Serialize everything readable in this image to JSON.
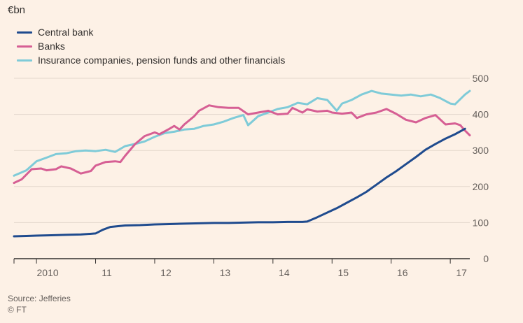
{
  "chart_data": {
    "type": "line",
    "unit_label": "€bn",
    "ylim": [
      0,
      500
    ],
    "yticks": [
      0,
      100,
      200,
      300,
      400,
      500
    ],
    "xlim": [
      2009.62,
      2017.33
    ],
    "xticks": [
      {
        "label": "2010",
        "pos": 2010.0
      },
      {
        "label": "11",
        "pos": 2011.0
      },
      {
        "label": "12",
        "pos": 2012.0
      },
      {
        "label": "13",
        "pos": 2013.0
      },
      {
        "label": "14",
        "pos": 2014.0
      },
      {
        "label": "15",
        "pos": 2015.0
      },
      {
        "label": "16",
        "pos": 2016.0
      },
      {
        "label": "17",
        "pos": 2017.0
      }
    ],
    "grid": true,
    "legend_position": "top-left",
    "series": [
      {
        "name": "Central bank",
        "color": "#1f4b8e",
        "points": [
          [
            2009.62,
            62
          ],
          [
            2009.83,
            63
          ],
          [
            2010.0,
            64
          ],
          [
            2010.25,
            65
          ],
          [
            2010.5,
            66
          ],
          [
            2010.75,
            67
          ],
          [
            2011.0,
            70
          ],
          [
            2011.12,
            80
          ],
          [
            2011.25,
            88
          ],
          [
            2011.5,
            92
          ],
          [
            2011.75,
            93
          ],
          [
            2012.0,
            95
          ],
          [
            2012.25,
            96
          ],
          [
            2012.5,
            97
          ],
          [
            2012.75,
            98
          ],
          [
            2013.0,
            99
          ],
          [
            2013.25,
            99
          ],
          [
            2013.5,
            100
          ],
          [
            2013.75,
            101
          ],
          [
            2014.0,
            101
          ],
          [
            2014.25,
            102
          ],
          [
            2014.5,
            102
          ],
          [
            2014.58,
            103
          ],
          [
            2014.75,
            115
          ],
          [
            2014.92,
            128
          ],
          [
            2015.08,
            140
          ],
          [
            2015.25,
            155
          ],
          [
            2015.42,
            170
          ],
          [
            2015.58,
            185
          ],
          [
            2015.75,
            205
          ],
          [
            2015.92,
            225
          ],
          [
            2016.08,
            242
          ],
          [
            2016.25,
            262
          ],
          [
            2016.42,
            282
          ],
          [
            2016.58,
            302
          ],
          [
            2016.75,
            318
          ],
          [
            2016.92,
            333
          ],
          [
            2017.08,
            345
          ],
          [
            2017.25,
            360
          ]
        ]
      },
      {
        "name": "Banks",
        "color": "#d65f94",
        "points": [
          [
            2009.62,
            210
          ],
          [
            2009.75,
            220
          ],
          [
            2009.92,
            248
          ],
          [
            2010.08,
            250
          ],
          [
            2010.17,
            245
          ],
          [
            2010.33,
            248
          ],
          [
            2010.42,
            256
          ],
          [
            2010.58,
            250
          ],
          [
            2010.75,
            236
          ],
          [
            2010.92,
            243
          ],
          [
            2011.0,
            258
          ],
          [
            2011.17,
            268
          ],
          [
            2011.33,
            270
          ],
          [
            2011.42,
            268
          ],
          [
            2011.5,
            285
          ],
          [
            2011.67,
            318
          ],
          [
            2011.83,
            340
          ],
          [
            2012.0,
            350
          ],
          [
            2012.08,
            345
          ],
          [
            2012.25,
            360
          ],
          [
            2012.33,
            368
          ],
          [
            2012.42,
            358
          ],
          [
            2012.5,
            372
          ],
          [
            2012.67,
            395
          ],
          [
            2012.75,
            410
          ],
          [
            2012.92,
            425
          ],
          [
            2013.08,
            420
          ],
          [
            2013.25,
            418
          ],
          [
            2013.42,
            418
          ],
          [
            2013.58,
            400
          ],
          [
            2013.75,
            405
          ],
          [
            2013.92,
            410
          ],
          [
            2014.08,
            400
          ],
          [
            2014.25,
            402
          ],
          [
            2014.33,
            418
          ],
          [
            2014.5,
            405
          ],
          [
            2014.58,
            414
          ],
          [
            2014.75,
            408
          ],
          [
            2014.92,
            410
          ],
          [
            2015.0,
            405
          ],
          [
            2015.17,
            402
          ],
          [
            2015.33,
            405
          ],
          [
            2015.42,
            390
          ],
          [
            2015.58,
            400
          ],
          [
            2015.75,
            405
          ],
          [
            2015.92,
            415
          ],
          [
            2016.08,
            402
          ],
          [
            2016.25,
            385
          ],
          [
            2016.42,
            378
          ],
          [
            2016.58,
            390
          ],
          [
            2016.75,
            398
          ],
          [
            2016.92,
            372
          ],
          [
            2017.08,
            375
          ],
          [
            2017.17,
            370
          ],
          [
            2017.25,
            355
          ],
          [
            2017.33,
            342
          ]
        ]
      },
      {
        "name": "Insurance companies, pension funds and other financials",
        "color": "#7fcbd8",
        "points": [
          [
            2009.62,
            230
          ],
          [
            2009.83,
            245
          ],
          [
            2010.0,
            270
          ],
          [
            2010.17,
            280
          ],
          [
            2010.33,
            290
          ],
          [
            2010.5,
            292
          ],
          [
            2010.67,
            298
          ],
          [
            2010.83,
            300
          ],
          [
            2011.0,
            298
          ],
          [
            2011.17,
            302
          ],
          [
            2011.33,
            296
          ],
          [
            2011.5,
            312
          ],
          [
            2011.67,
            318
          ],
          [
            2011.83,
            325
          ],
          [
            2012.0,
            338
          ],
          [
            2012.17,
            348
          ],
          [
            2012.33,
            352
          ],
          [
            2012.5,
            358
          ],
          [
            2012.67,
            360
          ],
          [
            2012.83,
            368
          ],
          [
            2013.0,
            372
          ],
          [
            2013.17,
            380
          ],
          [
            2013.33,
            390
          ],
          [
            2013.5,
            398
          ],
          [
            2013.58,
            370
          ],
          [
            2013.75,
            395
          ],
          [
            2013.92,
            405
          ],
          [
            2014.08,
            415
          ],
          [
            2014.25,
            420
          ],
          [
            2014.42,
            432
          ],
          [
            2014.58,
            428
          ],
          [
            2014.75,
            445
          ],
          [
            2014.92,
            440
          ],
          [
            2015.0,
            425
          ],
          [
            2015.08,
            410
          ],
          [
            2015.17,
            430
          ],
          [
            2015.33,
            440
          ],
          [
            2015.5,
            455
          ],
          [
            2015.67,
            465
          ],
          [
            2015.83,
            458
          ],
          [
            2016.0,
            455
          ],
          [
            2016.17,
            452
          ],
          [
            2016.33,
            455
          ],
          [
            2016.5,
            450
          ],
          [
            2016.67,
            455
          ],
          [
            2016.83,
            445
          ],
          [
            2017.0,
            430
          ],
          [
            2017.08,
            428
          ],
          [
            2017.25,
            455
          ],
          [
            2017.33,
            465
          ]
        ]
      }
    ]
  },
  "footer": {
    "source": "Source: Jefferies",
    "copyright": "© FT"
  }
}
